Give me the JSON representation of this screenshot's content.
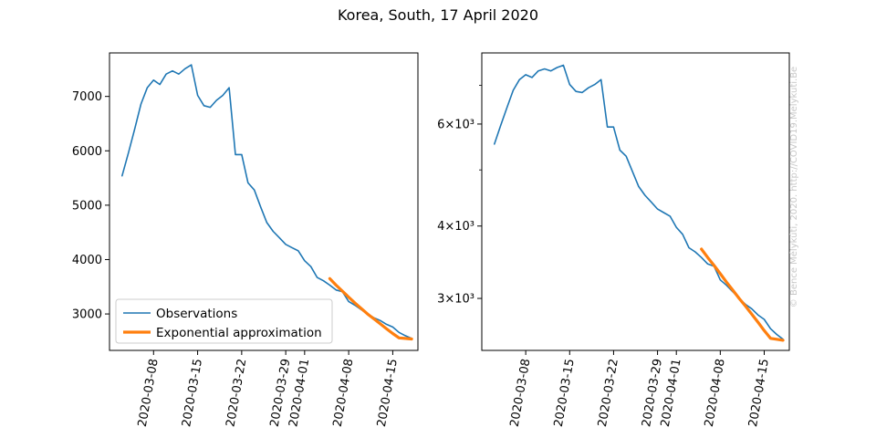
{
  "figure": {
    "title": "Korea, South, 17 April 2020",
    "watermark": "© Bence Mélykúti, 2020. http://COVID19.Melykuti.Be",
    "colors": {
      "observations": "#1f77b4",
      "approximation": "#ff7f0e",
      "axis": "#000000",
      "watermark": "#c8c8c8"
    }
  },
  "chart_data": [
    {
      "type": "line",
      "scale": "linear",
      "x_type": "date",
      "title": "",
      "xlabel": "",
      "ylabel": "",
      "xlim": [
        "2020-03-01",
        "2020-04-19"
      ],
      "ylim": [
        2330,
        7800
      ],
      "yticks": [
        3000,
        4000,
        5000,
        6000,
        7000
      ],
      "ytick_labels": [
        "3000",
        "4000",
        "5000",
        "6000",
        "7000"
      ],
      "xticks": [
        "2020-03-08",
        "2020-03-15",
        "2020-03-22",
        "2020-03-29",
        "2020-04-01",
        "2020-04-08",
        "2020-04-15"
      ],
      "legend": {
        "position": "lower-left",
        "entries": [
          "Observations",
          "Exponential approximation"
        ]
      },
      "series": [
        {
          "name": "Observations",
          "color": "#1f77b4",
          "x": [
            "2020-03-03",
            "2020-03-04",
            "2020-03-05",
            "2020-03-06",
            "2020-03-07",
            "2020-03-08",
            "2020-03-09",
            "2020-03-10",
            "2020-03-11",
            "2020-03-12",
            "2020-03-13",
            "2020-03-14",
            "2020-03-15",
            "2020-03-16",
            "2020-03-17",
            "2020-03-18",
            "2020-03-19",
            "2020-03-20",
            "2020-03-21",
            "2020-03-22",
            "2020-03-23",
            "2020-03-24",
            "2020-03-25",
            "2020-03-26",
            "2020-03-27",
            "2020-03-28",
            "2020-03-29",
            "2020-03-30",
            "2020-03-31",
            "2020-04-01",
            "2020-04-02",
            "2020-04-03",
            "2020-04-04",
            "2020-04-05",
            "2020-04-06",
            "2020-04-07",
            "2020-04-08",
            "2020-04-09",
            "2020-04-10",
            "2020-04-11",
            "2020-04-12",
            "2020-04-13",
            "2020-04-14",
            "2020-04-15",
            "2020-04-16",
            "2020-04-17",
            "2020-04-18"
          ],
          "y": [
            5540,
            5960,
            6400,
            6860,
            7160,
            7300,
            7220,
            7410,
            7470,
            7410,
            7510,
            7580,
            7020,
            6830,
            6800,
            6930,
            7020,
            7160,
            5930,
            5930,
            5410,
            5280,
            4970,
            4680,
            4520,
            4400,
            4280,
            4220,
            4160,
            3980,
            3870,
            3670,
            3610,
            3530,
            3440,
            3410,
            3230,
            3160,
            3080,
            3000,
            2930,
            2880,
            2810,
            2760,
            2660,
            2600,
            2550
          ]
        },
        {
          "name": "Exponential approximation",
          "color": "#ff7f0e",
          "x": [
            "2020-04-05",
            "2020-04-06",
            "2020-04-07",
            "2020-04-08",
            "2020-04-09",
            "2020-04-10",
            "2020-04-11",
            "2020-04-12",
            "2020-04-13",
            "2020-04-14",
            "2020-04-15",
            "2020-04-16",
            "2020-04-17",
            "2020-04-18"
          ],
          "y": [
            3650,
            3530,
            3420,
            3310,
            3200,
            3100,
            3000,
            2910,
            2820,
            2730,
            2640,
            2560,
            2550,
            2540
          ]
        }
      ]
    },
    {
      "type": "line",
      "scale": "log",
      "x_type": "date",
      "title": "",
      "xlabel": "",
      "ylabel": "",
      "xlim": [
        "2020-03-01",
        "2020-04-19"
      ],
      "ylim": [
        2440,
        7960
      ],
      "yticks": [
        3000,
        4000,
        6000
      ],
      "ytick_labels": [
        "3×10³",
        "4×10³",
        "6×10³"
      ],
      "minor_yticks": [
        5000,
        7000
      ],
      "xticks": [
        "2020-03-08",
        "2020-03-15",
        "2020-03-22",
        "2020-03-29",
        "2020-04-01",
        "2020-04-08",
        "2020-04-15"
      ],
      "series": [
        {
          "name": "Observations",
          "color": "#1f77b4",
          "x": [
            "2020-03-03",
            "2020-03-04",
            "2020-03-05",
            "2020-03-06",
            "2020-03-07",
            "2020-03-08",
            "2020-03-09",
            "2020-03-10",
            "2020-03-11",
            "2020-03-12",
            "2020-03-13",
            "2020-03-14",
            "2020-03-15",
            "2020-03-16",
            "2020-03-17",
            "2020-03-18",
            "2020-03-19",
            "2020-03-20",
            "2020-03-21",
            "2020-03-22",
            "2020-03-23",
            "2020-03-24",
            "2020-03-25",
            "2020-03-26",
            "2020-03-27",
            "2020-03-28",
            "2020-03-29",
            "2020-03-30",
            "2020-03-31",
            "2020-04-01",
            "2020-04-02",
            "2020-04-03",
            "2020-04-04",
            "2020-04-05",
            "2020-04-06",
            "2020-04-07",
            "2020-04-08",
            "2020-04-09",
            "2020-04-10",
            "2020-04-11",
            "2020-04-12",
            "2020-04-13",
            "2020-04-14",
            "2020-04-15",
            "2020-04-16",
            "2020-04-17",
            "2020-04-18"
          ],
          "y": [
            5540,
            5960,
            6400,
            6860,
            7160,
            7300,
            7220,
            7410,
            7470,
            7410,
            7510,
            7580,
            7020,
            6830,
            6800,
            6930,
            7020,
            7160,
            5930,
            5930,
            5410,
            5280,
            4970,
            4680,
            4520,
            4400,
            4280,
            4220,
            4160,
            3980,
            3870,
            3670,
            3610,
            3530,
            3440,
            3410,
            3230,
            3160,
            3080,
            3000,
            2930,
            2880,
            2810,
            2760,
            2660,
            2600,
            2550
          ]
        },
        {
          "name": "Exponential approximation",
          "color": "#ff7f0e",
          "x": [
            "2020-04-05",
            "2020-04-06",
            "2020-04-07",
            "2020-04-08",
            "2020-04-09",
            "2020-04-10",
            "2020-04-11",
            "2020-04-12",
            "2020-04-13",
            "2020-04-14",
            "2020-04-15",
            "2020-04-16",
            "2020-04-17",
            "2020-04-18"
          ],
          "y": [
            3650,
            3530,
            3420,
            3310,
            3200,
            3100,
            3000,
            2910,
            2820,
            2730,
            2640,
            2560,
            2550,
            2540
          ]
        }
      ]
    }
  ]
}
